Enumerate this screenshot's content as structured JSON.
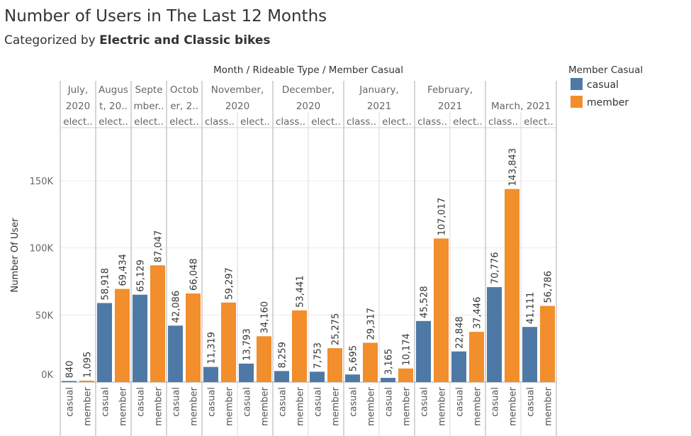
{
  "title": "Number of Users in The Last 12 Months",
  "subtitle_prefix": "Categorized by ",
  "subtitle_bold": "Electric and Classic bikes",
  "chart_data": {
    "type": "bar",
    "header_title": "Month  /  Rideable Type  /  Member Casual",
    "ylabel": "Number Of User",
    "yticks": [
      {
        "value": 0,
        "label": "0K"
      },
      {
        "value": 50000,
        "label": "50K"
      },
      {
        "value": 100000,
        "label": "100K"
      },
      {
        "value": 150000,
        "label": "150K"
      }
    ],
    "ylim": [
      0,
      185000
    ],
    "legend": {
      "title": "Member Casual",
      "placement": "right",
      "items": [
        {
          "label": "casual",
          "color": "#4e79a7"
        },
        {
          "label": "member",
          "color": "#f28e2b"
        }
      ]
    },
    "months": [
      {
        "label": [
          "July,",
          "2020"
        ],
        "types": [
          {
            "label": "elect..",
            "values": [
              840,
              1095
            ]
          }
        ]
      },
      {
        "label": [
          "Augus",
          "t, 20.."
        ],
        "types": [
          {
            "label": "elect..",
            "values": [
              58918,
              69434
            ]
          }
        ]
      },
      {
        "label": [
          "Septe",
          "mber.."
        ],
        "types": [
          {
            "label": "elect..",
            "values": [
              65129,
              87047
            ]
          }
        ]
      },
      {
        "label": [
          "Octob",
          "er, 2.."
        ],
        "types": [
          {
            "label": "elect..",
            "values": [
              42086,
              66048
            ]
          }
        ]
      },
      {
        "label": [
          "November,",
          "2020"
        ],
        "types": [
          {
            "label": "class..",
            "values": [
              11319,
              59297
            ]
          },
          {
            "label": "elect..",
            "values": [
              13793,
              34160
            ]
          }
        ]
      },
      {
        "label": [
          "December,",
          "2020"
        ],
        "types": [
          {
            "label": "class..",
            "values": [
              8259,
              53441
            ]
          },
          {
            "label": "elect..",
            "values": [
              7753,
              25275
            ]
          }
        ]
      },
      {
        "label": [
          "January,",
          "2021"
        ],
        "types": [
          {
            "label": "class..",
            "values": [
              5695,
              29317
            ]
          },
          {
            "label": "elect..",
            "values": [
              3165,
              10174
            ]
          }
        ]
      },
      {
        "label": [
          "February,",
          "2021"
        ],
        "types": [
          {
            "label": "class..",
            "values": [
              45528,
              107017
            ]
          },
          {
            "label": "elect..",
            "values": [
              22848,
              37446
            ]
          }
        ]
      },
      {
        "label": [
          "March, 2021"
        ],
        "types": [
          {
            "label": "class..",
            "values": [
              70776,
              143843
            ]
          },
          {
            "label": "elect..",
            "values": [
              41111,
              56786
            ]
          }
        ]
      }
    ],
    "bar_labels": [
      "casual",
      "member"
    ],
    "bar_colors": [
      "#4e79a7",
      "#f28e2b"
    ]
  }
}
